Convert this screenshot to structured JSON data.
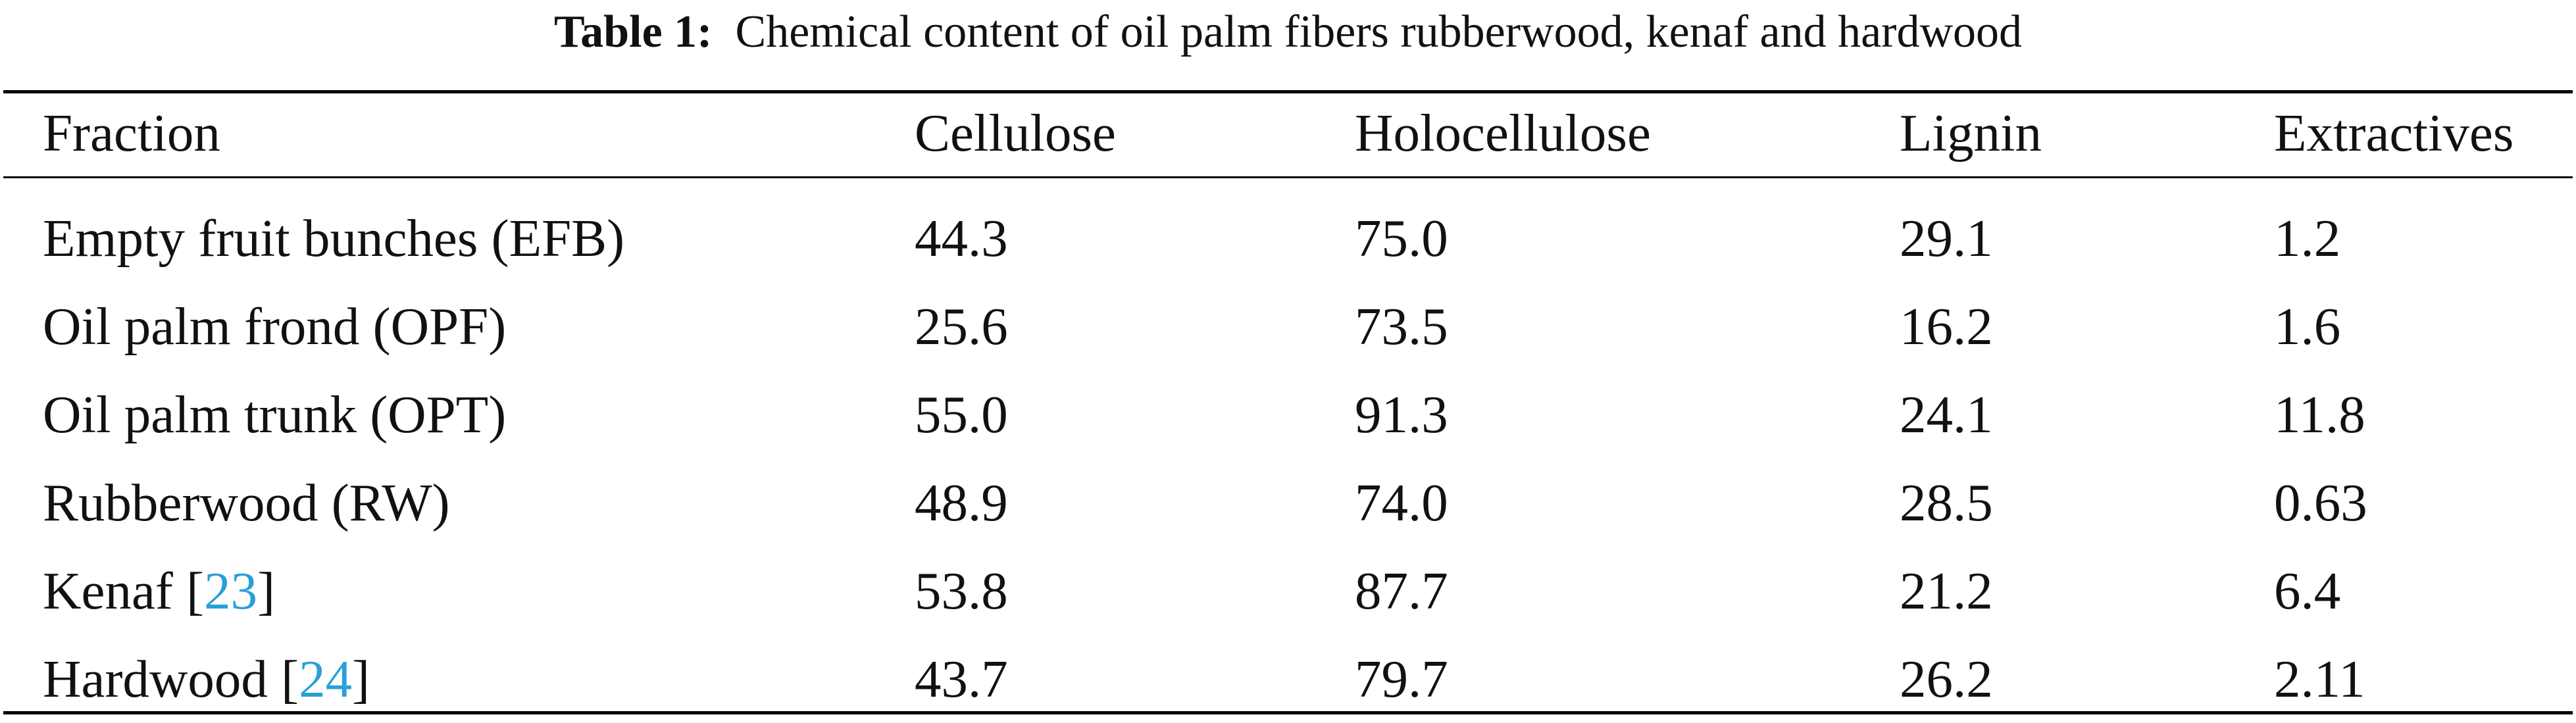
{
  "caption": {
    "label": "Table 1:",
    "text": "Chemical content of oil palm fibers rubberwood, kenaf and hardwood"
  },
  "table": {
    "headers": [
      "Fraction",
      "Cellulose",
      "Holocellulose",
      "Lignin",
      "Extractives"
    ],
    "rows": [
      {
        "fraction": "Empty fruit bunches (EFB)",
        "ref": "",
        "cellulose": "44.3",
        "holocellulose": "75.0",
        "lignin": "29.1",
        "extractives": "1.2"
      },
      {
        "fraction": "Oil palm frond (OPF)",
        "ref": "",
        "cellulose": "25.6",
        "holocellulose": "73.5",
        "lignin": "16.2",
        "extractives": "1.6"
      },
      {
        "fraction": "Oil palm trunk (OPT)",
        "ref": "",
        "cellulose": "55.0",
        "holocellulose": "91.3",
        "lignin": "24.1",
        "extractives": "11.8"
      },
      {
        "fraction": "Rubberwood (RW)",
        "ref": "",
        "cellulose": "48.9",
        "holocellulose": "74.0",
        "lignin": "28.5",
        "extractives": "0.63"
      },
      {
        "fraction": "Kenaf",
        "ref": "23",
        "cellulose": "53.8",
        "holocellulose": "87.7",
        "lignin": "21.2",
        "extractives": "6.4"
      },
      {
        "fraction": "Hardwood",
        "ref": "24",
        "cellulose": "43.7",
        "holocellulose": "79.7",
        "lignin": "26.2",
        "extractives": "2.11"
      }
    ]
  },
  "colors": {
    "text": "#111111",
    "rule": "#000000",
    "citation_link": "#2a9fd8"
  }
}
